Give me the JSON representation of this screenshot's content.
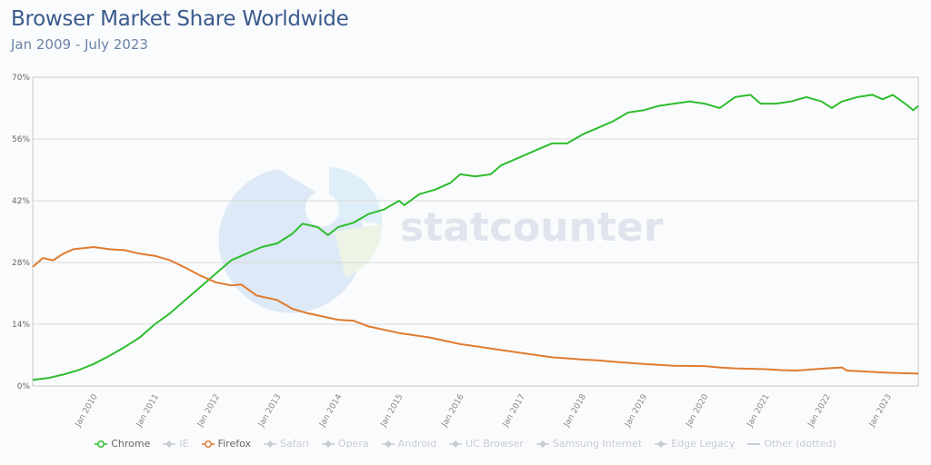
{
  "header": {
    "title": "Browser Market Share Worldwide",
    "subtitle": "Jan 2009 - July 2023"
  },
  "watermark": "statcounter",
  "legend": [
    {
      "label": "Chrome",
      "color": "#2ebd2e",
      "active": true,
      "marker": "circle"
    },
    {
      "label": "IE",
      "color": "#c8ccd2",
      "active": false,
      "marker": "diamond"
    },
    {
      "label": "Firefox",
      "color": "#e07b2e",
      "active": true,
      "marker": "circle"
    },
    {
      "label": "Safari",
      "color": "#c8ccd2",
      "active": false,
      "marker": "diamond"
    },
    {
      "label": "Opera",
      "color": "#c8ccd2",
      "active": false,
      "marker": "diamond"
    },
    {
      "label": "Android",
      "color": "#c8ccd2",
      "active": false,
      "marker": "diamond"
    },
    {
      "label": "UC Browser",
      "color": "#c8ccd2",
      "active": false,
      "marker": "diamond"
    },
    {
      "label": "Samsung Internet",
      "color": "#c8ccd2",
      "active": false,
      "marker": "diamond"
    },
    {
      "label": "Edge Legacy",
      "color": "#c8ccd2",
      "active": false,
      "marker": "diamond"
    },
    {
      "label": "Other (dotted)",
      "color": "#c8ccd2",
      "active": false,
      "marker": "line"
    }
  ],
  "chart_data": {
    "type": "line",
    "title": "Browser Market Share Worldwide",
    "subtitle": "Jan 2009 - July 2023",
    "xlabel": "",
    "ylabel": "",
    "ylim": [
      0,
      70
    ],
    "yticks": [
      "0%",
      "14%",
      "28%",
      "42%",
      "56%",
      "70%"
    ],
    "ytick_values": [
      0,
      14,
      28,
      42,
      56,
      70
    ],
    "xticks": [
      "Jan 2010",
      "Jan 2011",
      "Jan 2012",
      "Jan 2013",
      "Jan 2014",
      "Jan 2015",
      "Jan 2016",
      "Jan 2017",
      "Jan 2018",
      "Jan 2019",
      "Jan 2020",
      "Jan 2021",
      "Jan 2022",
      "Jan 2023"
    ],
    "grid": true,
    "legend_position": "bottom",
    "x_start": "Jan 2009",
    "x_end": "Jul 2023",
    "series": [
      {
        "name": "Chrome",
        "color": "#2ebd2e",
        "keypoints": [
          [
            "2009-01",
            1.4
          ],
          [
            "2009-04",
            1.8
          ],
          [
            "2009-07",
            2.6
          ],
          [
            "2009-10",
            3.6
          ],
          [
            "2010-01",
            5.0
          ],
          [
            "2010-04",
            6.8
          ],
          [
            "2010-07",
            8.8
          ],
          [
            "2010-10",
            11.0
          ],
          [
            "2011-01",
            14.0
          ],
          [
            "2011-04",
            16.5
          ],
          [
            "2011-07",
            19.5
          ],
          [
            "2011-10",
            22.5
          ],
          [
            "2012-01",
            25.5
          ],
          [
            "2012-04",
            28.5
          ],
          [
            "2012-07",
            30.0
          ],
          [
            "2012-10",
            31.5
          ],
          [
            "2013-01",
            32.3
          ],
          [
            "2013-04",
            34.5
          ],
          [
            "2013-06",
            36.8
          ],
          [
            "2013-09",
            36.0
          ],
          [
            "2013-11",
            34.2
          ],
          [
            "2014-01",
            36.0
          ],
          [
            "2014-04",
            37.0
          ],
          [
            "2014-07",
            39.0
          ],
          [
            "2014-10",
            40.0
          ],
          [
            "2015-01",
            42.0
          ],
          [
            "2015-02",
            41.0
          ],
          [
            "2015-05",
            43.5
          ],
          [
            "2015-08",
            44.5
          ],
          [
            "2015-11",
            46.0
          ],
          [
            "2016-01",
            48.0
          ],
          [
            "2016-04",
            47.5
          ],
          [
            "2016-07",
            48.0
          ],
          [
            "2016-09",
            50.0
          ],
          [
            "2017-01",
            52.0
          ],
          [
            "2017-04",
            53.5
          ],
          [
            "2017-07",
            55.0
          ],
          [
            "2017-10",
            55.0
          ],
          [
            "2018-01",
            57.0
          ],
          [
            "2018-04",
            58.5
          ],
          [
            "2018-07",
            60.0
          ],
          [
            "2018-10",
            62.0
          ],
          [
            "2019-01",
            62.5
          ],
          [
            "2019-04",
            63.5
          ],
          [
            "2019-07",
            64.0
          ],
          [
            "2019-10",
            64.5
          ],
          [
            "2020-01",
            64.0
          ],
          [
            "2020-04",
            63.0
          ],
          [
            "2020-07",
            65.5
          ],
          [
            "2020-10",
            66.0
          ],
          [
            "2020-12",
            64.0
          ],
          [
            "2021-03",
            64.0
          ],
          [
            "2021-06",
            64.5
          ],
          [
            "2021-09",
            65.5
          ],
          [
            "2021-12",
            64.5
          ],
          [
            "2022-02",
            63.0
          ],
          [
            "2022-04",
            64.5
          ],
          [
            "2022-07",
            65.5
          ],
          [
            "2022-10",
            66.0
          ],
          [
            "2022-12",
            65.0
          ],
          [
            "2023-02",
            66.0
          ],
          [
            "2023-05",
            63.5
          ],
          [
            "2023-06",
            62.5
          ],
          [
            "2023-07",
            63.5
          ]
        ]
      },
      {
        "name": "Firefox",
        "color": "#e07b2e",
        "keypoints": [
          [
            "2009-01",
            27.0
          ],
          [
            "2009-03",
            29.0
          ],
          [
            "2009-05",
            28.5
          ],
          [
            "2009-07",
            30.0
          ],
          [
            "2009-09",
            31.0
          ],
          [
            "2010-01",
            31.5
          ],
          [
            "2010-04",
            31.0
          ],
          [
            "2010-07",
            30.8
          ],
          [
            "2010-10",
            30.0
          ],
          [
            "2011-01",
            29.5
          ],
          [
            "2011-04",
            28.5
          ],
          [
            "2011-07",
            26.8
          ],
          [
            "2011-10",
            25.0
          ],
          [
            "2012-01",
            23.5
          ],
          [
            "2012-04",
            22.8
          ],
          [
            "2012-06",
            23.0
          ],
          [
            "2012-09",
            20.5
          ],
          [
            "2013-01",
            19.5
          ],
          [
            "2013-04",
            17.5
          ],
          [
            "2013-07",
            16.5
          ],
          [
            "2014-01",
            15.0
          ],
          [
            "2014-04",
            14.8
          ],
          [
            "2014-07",
            13.5
          ],
          [
            "2015-01",
            12.0
          ],
          [
            "2015-04",
            11.5
          ],
          [
            "2015-07",
            11.0
          ],
          [
            "2016-01",
            9.5
          ],
          [
            "2016-04",
            9.0
          ],
          [
            "2016-07",
            8.5
          ],
          [
            "2017-01",
            7.5
          ],
          [
            "2017-07",
            6.5
          ],
          [
            "2018-01",
            6.0
          ],
          [
            "2018-04",
            5.8
          ],
          [
            "2018-07",
            5.5
          ],
          [
            "2019-01",
            5.0
          ],
          [
            "2019-04",
            4.8
          ],
          [
            "2019-07",
            4.6
          ],
          [
            "2020-01",
            4.5
          ],
          [
            "2020-04",
            4.2
          ],
          [
            "2020-07",
            4.0
          ],
          [
            "2021-01",
            3.8
          ],
          [
            "2021-04",
            3.6
          ],
          [
            "2021-07",
            3.5
          ],
          [
            "2022-01",
            4.0
          ],
          [
            "2022-04",
            4.2
          ],
          [
            "2022-05",
            3.5
          ],
          [
            "2022-10",
            3.2
          ],
          [
            "2023-01",
            3.0
          ],
          [
            "2023-07",
            2.8
          ]
        ]
      }
    ]
  }
}
